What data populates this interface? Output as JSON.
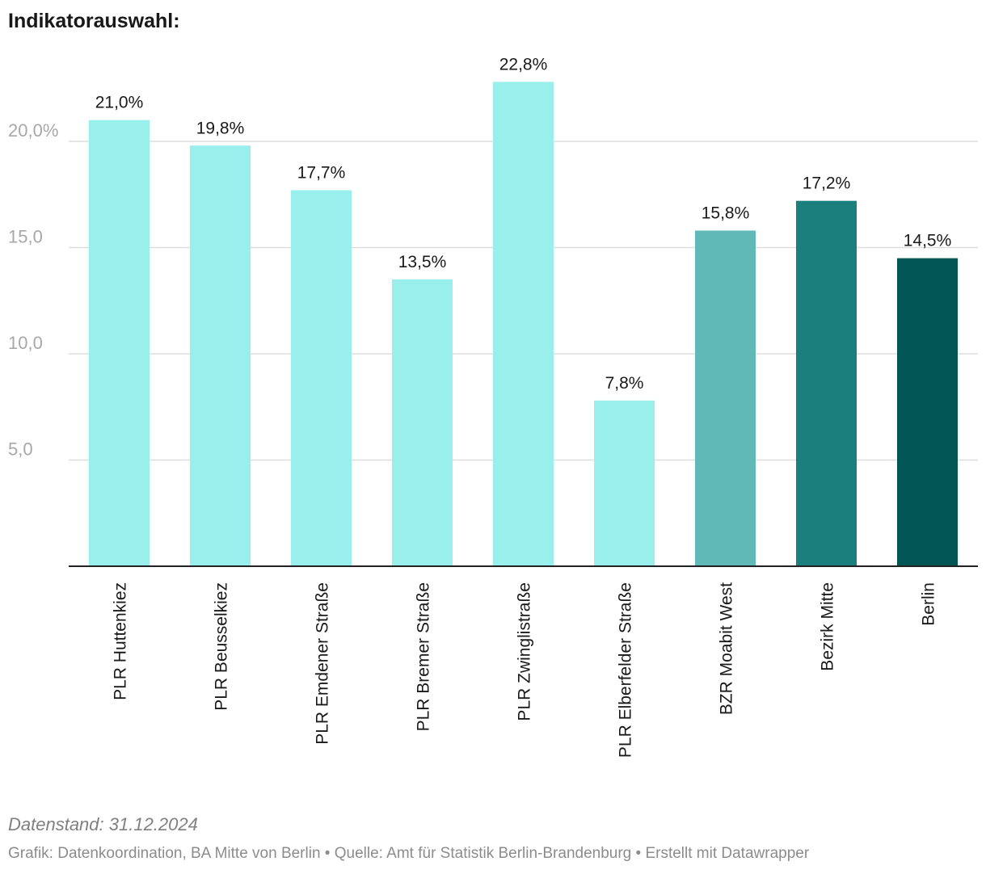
{
  "header": {
    "title": "Indikatorauswahl:"
  },
  "chart_data": {
    "type": "bar",
    "title": "Indikatorauswahl:",
    "xlabel": "",
    "ylabel": "",
    "ylim": [
      0,
      23.5
    ],
    "grid": true,
    "categories": [
      "PLR Huttenkiez",
      "PLR Beusselkiez",
      "PLR Emdener Straße",
      "PLR Bremer Straße",
      "PLR Zwinglistraße",
      "PLR Elberfelder Straße",
      "BZR Moabit West",
      "Bezirk Mitte",
      "Berlin"
    ],
    "values": [
      21.0,
      19.8,
      17.7,
      13.5,
      22.8,
      7.8,
      15.8,
      17.2,
      14.5
    ],
    "value_labels": [
      "21,0%",
      "19,8%",
      "17,7%",
      "13,5%",
      "22,8%",
      "7,8%",
      "15,8%",
      "17,2%",
      "14,5%"
    ],
    "bar_colors": [
      "#98efec",
      "#98efec",
      "#98efec",
      "#98efec",
      "#98efec",
      "#98efec",
      "#60b9b7",
      "#1b7f7e",
      "#005555"
    ],
    "yticks": [
      5,
      10,
      15,
      20
    ],
    "ytick_labels": [
      "5,0",
      "10,0",
      "15,0",
      "20,0%"
    ]
  },
  "footer": {
    "note": "Datenstand: 31.12.2024",
    "credit": "Grafik: Datenkoordination, BA Mitte von Berlin • Quelle: Amt für Statistik Berlin-Brandenburg • Erstellt mit Datawrapper"
  }
}
